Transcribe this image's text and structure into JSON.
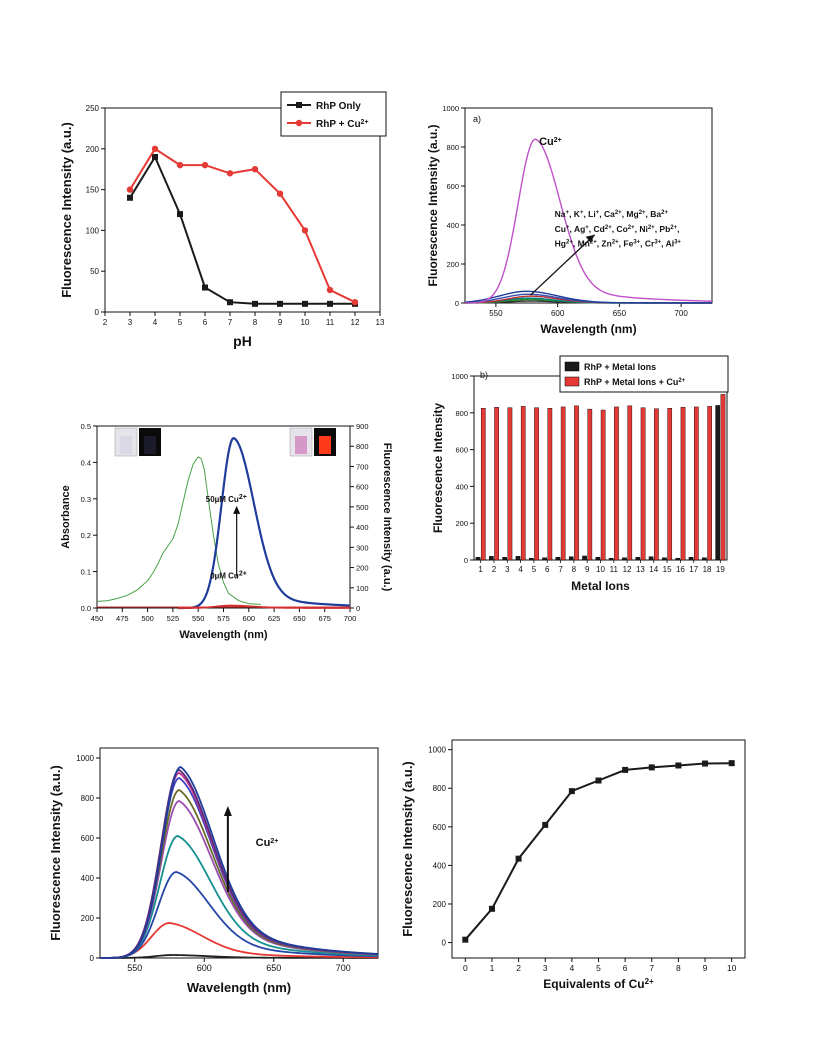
{
  "chart_data": [
    {
      "id": "ph",
      "type": "line",
      "xlabel": "pH",
      "ylabel": "Fluorescence Intensity (a.u.)",
      "xlim": [
        2,
        13
      ],
      "ylim": [
        0,
        250
      ],
      "xticks": [
        2,
        3,
        4,
        5,
        6,
        7,
        8,
        9,
        10,
        11,
        12,
        13
      ],
      "yticks": [
        0,
        50,
        100,
        150,
        200,
        250
      ],
      "legend_position": "top-right",
      "legend_items": [
        {
          "text": "RhP Only",
          "marker": "square",
          "color": "#1a1a1a"
        },
        {
          "html": "RhP + Cu<tspan baseline-shift=\"super\" font-size=\"7\">2+</tspan>",
          "marker": "circle",
          "color": "#e53935"
        }
      ],
      "series": [
        {
          "name": "RhP Only",
          "color": "#1a1a1a",
          "marker": "square",
          "x": [
            3,
            4,
            5,
            6,
            7,
            8,
            9,
            10,
            11,
            12
          ],
          "y": [
            140,
            190,
            120,
            30,
            12,
            10,
            10,
            10,
            10,
            10
          ]
        },
        {
          "name": "RhP + Cu2+",
          "color": "#e53935",
          "marker": "circle",
          "x": [
            3,
            4,
            5,
            6,
            7,
            8,
            9,
            10,
            11,
            12
          ],
          "y": [
            150,
            200,
            180,
            180,
            170,
            175,
            145,
            100,
            27,
            12
          ]
        }
      ]
    },
    {
      "id": "spectra_a",
      "type": "line",
      "panel_label": "a)",
      "xlabel": "Wavelength (nm)",
      "ylabel": "Fluorescence Intensity (a.u.)",
      "xlim": [
        525,
        725
      ],
      "ylim": [
        0,
        1000
      ],
      "xticks": [
        550,
        600,
        650,
        700
      ],
      "yticks": [
        0,
        200,
        400,
        600,
        800,
        1000
      ],
      "annotations": [
        {
          "text": "Cu<tspan baseline-shift=\"super\" font-size=\"7\">2+</tspan>",
          "x": 585,
          "y": 810
        },
        {
          "text": "Na<tspan baseline-shift=\"super\" font-size=\"6\">+</tspan>, K<tspan baseline-shift=\"super\" font-size=\"6\">+</tspan>, Li<tspan baseline-shift=\"super\" font-size=\"6\">+</tspan>, Ca<tspan baseline-shift=\"super\" font-size=\"6\">2+</tspan>, Mg<tspan baseline-shift=\"super\" font-size=\"6\">2+</tspan>, Ba<tspan baseline-shift=\"super\" font-size=\"6\">2+</tspan>",
          "x": 630,
          "y": 440
        },
        {
          "text": "Cu<tspan baseline-shift=\"super\" font-size=\"6\">+</tspan>, Ag<tspan baseline-shift=\"super\" font-size=\"6\">+</tspan>, Cd<tspan baseline-shift=\"super\" font-size=\"6\">2+</tspan>, Co<tspan baseline-shift=\"super\" font-size=\"6\">2+</tspan>, Ni<tspan baseline-shift=\"super\" font-size=\"6\">2+</tspan>, Pb<tspan baseline-shift=\"super\" font-size=\"6\">2+</tspan>,",
          "x": 630,
          "y": 365
        },
        {
          "text": "Hg<tspan baseline-shift=\"super\" font-size=\"6\">2+</tspan>, Mn<tspan baseline-shift=\"super\" font-size=\"6\">2+</tspan>, Zn<tspan baseline-shift=\"super\" font-size=\"6\">2+</tspan>, Fe<tspan baseline-shift=\"super\" font-size=\"6\">3+</tspan>, Cr<tspan baseline-shift=\"super\" font-size=\"6\">3+</tspan>, Al<tspan baseline-shift=\"super\" font-size=\"6\">3+</tspan>",
          "x": 630,
          "y": 290
        }
      ],
      "series": [
        {
          "name": "Cu2+",
          "color": "#c050c8",
          "peak": 582,
          "height": 840,
          "width_left": 14,
          "width_right": 20,
          "tail": 0.12
        },
        {
          "color": "#1f3d9a",
          "peak": 575,
          "height": 60,
          "width_left": 22,
          "width_right": 25,
          "tail": 0.05
        },
        {
          "color": "#3a50b0",
          "peak": 576,
          "height": 45,
          "width_left": 20,
          "width_right": 24,
          "tail": 0.05
        },
        {
          "color": "#c03030",
          "peak": 578,
          "height": 35,
          "width_left": 18,
          "width_right": 22,
          "tail": 0.05
        },
        {
          "color": "#008080",
          "peak": 576,
          "height": 25,
          "width_left": 18,
          "width_right": 22,
          "tail": 0.05
        },
        {
          "color": "#2a8a2a",
          "peak": 577,
          "height": 18,
          "width_left": 18,
          "width_right": 22,
          "tail": 0.05
        },
        {
          "color": "#333333",
          "peak": 578,
          "height": 10,
          "width_left": 18,
          "width_right": 22,
          "tail": 0.05
        }
      ]
    },
    {
      "id": "absorbance",
      "type": "line",
      "xlabel": "Wavelength (nm)",
      "ylabel": "Absorbance",
      "y2label": "Fluorescence Intensity (a.u.)",
      "xlim": [
        450,
        700
      ],
      "ylim": [
        0,
        0.5
      ],
      "y2lim": [
        0,
        900
      ],
      "xticks": [
        450,
        475,
        500,
        525,
        550,
        575,
        600,
        625,
        650,
        675,
        700
      ],
      "yticks": [
        0.0,
        0.1,
        0.2,
        0.3,
        0.4,
        0.5
      ],
      "y2ticks": [
        0,
        100,
        200,
        300,
        400,
        500,
        600,
        700,
        800,
        900
      ],
      "annotations": [
        {
          "text": "50µM Cu<tspan baseline-shift=\"super\" font-size=\"7\">2+</tspan>",
          "x": 600,
          "y2": 525
        },
        {
          "text": "0µM Cu<tspan baseline-shift=\"super\" font-size=\"7\">2+</tspan>",
          "x": 600,
          "y2": 145
        }
      ],
      "series": [
        {
          "name": "absorbance",
          "axis": "y",
          "color": "#49a149",
          "x": [
            450,
            460,
            470,
            480,
            490,
            500,
            505,
            510,
            515,
            520,
            525,
            530,
            535,
            540,
            545,
            550,
            553,
            556,
            560,
            565,
            570,
            575,
            580,
            590,
            600,
            612
          ],
          "y": [
            0.018,
            0.02,
            0.026,
            0.035,
            0.05,
            0.075,
            0.095,
            0.12,
            0.15,
            0.17,
            0.19,
            0.23,
            0.29,
            0.35,
            0.395,
            0.415,
            0.41,
            0.38,
            0.3,
            0.2,
            0.12,
            0.07,
            0.04,
            0.02,
            0.012,
            0.01
          ]
        },
        {
          "name": "fluorescence 50µM",
          "axis": "y2",
          "color": "#1f3d9a",
          "peak": 585,
          "height": 840,
          "width_left": 12,
          "width_right": 20,
          "tail": 0.1,
          "xstart": 530
        },
        {
          "name": "fluorescence 0µM",
          "axis": "y2",
          "color": "#d32f2f",
          "peak": 582,
          "height": 12,
          "width_left": 14,
          "width_right": 22,
          "tail": 0.1,
          "xstart": 530
        }
      ]
    },
    {
      "id": "metal_ions",
      "type": "bar",
      "panel_label": "b)",
      "xlabel": "Metal Ions",
      "ylabel": "Fluorescence Intensity",
      "ylim": [
        0,
        1000
      ],
      "yticks": [
        0,
        200,
        400,
        600,
        800,
        1000
      ],
      "categories": [
        "1",
        "2",
        "3",
        "4",
        "5",
        "6",
        "7",
        "8",
        "9",
        "10",
        "11",
        "12",
        "13",
        "14",
        "15",
        "16",
        "17",
        "18",
        "19"
      ],
      "legend_position": "top-right",
      "legend_items": [
        {
          "text": "RhP + Metal Ions",
          "color": "#1a1a1a"
        },
        {
          "html": "RhP + Metal Ions + Cu<tspan baseline-shift=\"super\" font-size=\"6\">2+</tspan>",
          "color": "#e53935"
        }
      ],
      "series": [
        {
          "name": "RhP + Metal Ions",
          "color": "#1a1a1a",
          "values": [
            15,
            20,
            15,
            20,
            10,
            12,
            15,
            18,
            22,
            15,
            10,
            12,
            15,
            18,
            12,
            10,
            15,
            12,
            840
          ]
        },
        {
          "name": "RhP + Metal Ions + Cu2+",
          "color": "#e53935",
          "values": [
            825,
            830,
            828,
            835,
            828,
            825,
            832,
            838,
            820,
            815,
            832,
            838,
            828,
            822,
            825,
            830,
            832,
            835,
            900
          ]
        }
      ]
    },
    {
      "id": "titration_spectra",
      "type": "line",
      "xlabel": "Wavelength (nm)",
      "ylabel": "Fluorescence Intensity (a.u.)",
      "xlim": [
        525,
        725
      ],
      "ylim": [
        0,
        1050
      ],
      "xticks": [
        550,
        600,
        650,
        700
      ],
      "yticks": [
        0,
        200,
        400,
        600,
        800,
        1000
      ],
      "annotations": [
        {
          "text": "Cu<tspan baseline-shift=\"super\" font-size=\"7\">2+</tspan>",
          "x": 637,
          "y": 560
        }
      ],
      "series": [
        {
          "color": "#222222",
          "peak": 578,
          "height": 15
        },
        {
          "color": "#e53935",
          "peak": 575,
          "height": 175
        },
        {
          "color": "#2545a8",
          "peak": 580,
          "height": 430
        },
        {
          "color": "#139090",
          "peak": 581,
          "height": 610
        },
        {
          "color": "#9a4fb0",
          "peak": 582,
          "height": 785
        },
        {
          "color": "#6b6b28",
          "peak": 582,
          "height": 840
        },
        {
          "color": "#4040c0",
          "peak": 582,
          "height": 900
        },
        {
          "color": "#c8348a",
          "peak": 582,
          "height": 925
        },
        {
          "color": "#5a2a7a",
          "peak": 582,
          "height": 940
        },
        {
          "color": "#1f3d9a",
          "peak": 583,
          "height": 955
        }
      ]
    },
    {
      "id": "equivalents",
      "type": "line",
      "xlabel": "Equivalents of Cu<tspan baseline-shift=\"super\" font-size=\"8\">2+</tspan>",
      "ylabel": "Fluorescence Intensity (a.u.)",
      "xlim": [
        -0.5,
        10.5
      ],
      "ylim": [
        -80,
        1050
      ],
      "xticks": [
        0,
        1,
        2,
        3,
        4,
        5,
        6,
        7,
        8,
        9,
        10
      ],
      "yticks": [
        0,
        200,
        400,
        600,
        800,
        1000
      ],
      "series": [
        {
          "color": "#1a1a1a",
          "marker": "square",
          "x": [
            0,
            1,
            2,
            3,
            4,
            5,
            6,
            7,
            8,
            9,
            10
          ],
          "y": [
            15,
            175,
            435,
            610,
            785,
            840,
            895,
            908,
            918,
            928,
            930
          ]
        }
      ]
    }
  ]
}
